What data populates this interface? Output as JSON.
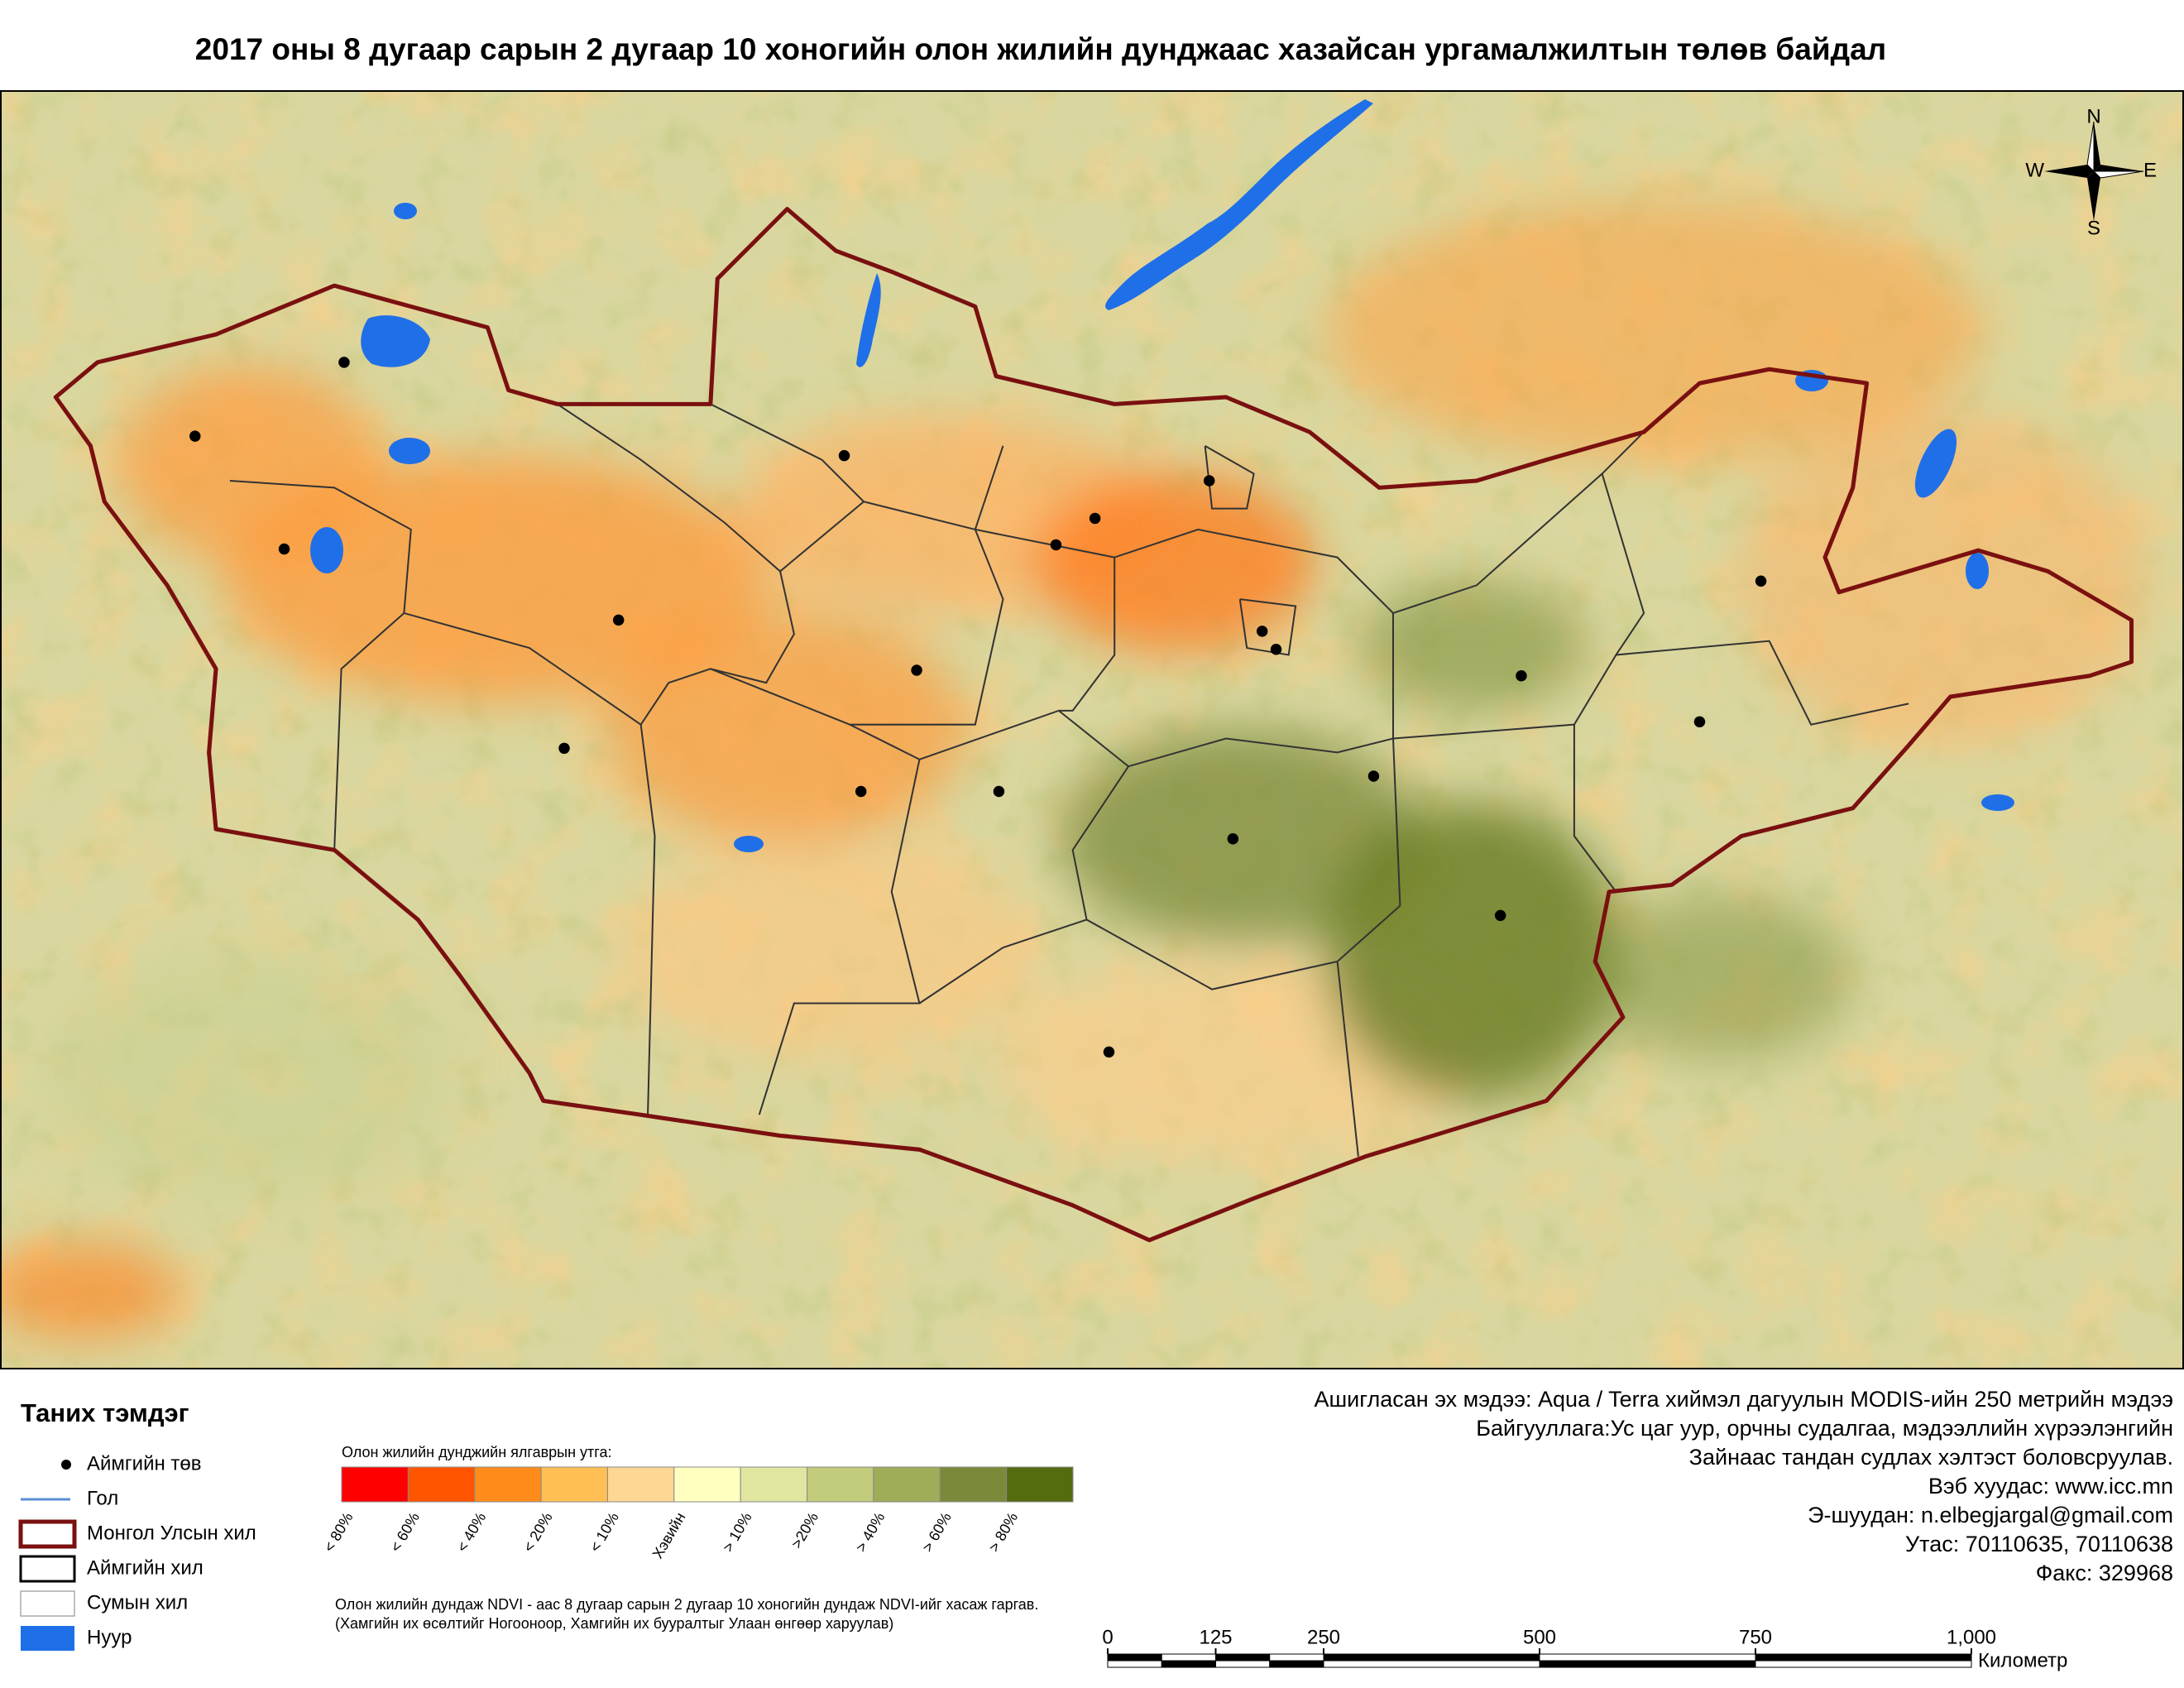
{
  "title": "2017 оны 8 дугаар сарын 2 дугаар 10 хоногийн олон жилийн дунджаас хазайсан ургамалжилтын төлөв байдал",
  "compass": {
    "n": "N",
    "e": "E",
    "s": "S",
    "w": "W"
  },
  "legend": {
    "title": "Таних тэмдэг",
    "items": [
      "Аймгийн төв",
      "Гол",
      "Монгол Улсын хил",
      "Аймгийн хил",
      "Сумын хил",
      "Нуур"
    ]
  },
  "color_scale": {
    "title": "Олон жилийн дунджийн ялгаврын утга:",
    "classes": [
      {
        "label": "< 80%",
        "color": "#ff0000"
      },
      {
        "label": "< 60%",
        "color": "#ff5500"
      },
      {
        "label": "< 40%",
        "color": "#ff8c1a"
      },
      {
        "label": "< 20%",
        "color": "#ffbf55"
      },
      {
        "label": "< 10%",
        "color": "#ffd795"
      },
      {
        "label": "Хэвийн",
        "color": "#ffffc0"
      },
      {
        "label": "> 10%",
        "color": "#e0e6a0"
      },
      {
        "label": ">20%",
        "color": "#c2cc7a"
      },
      {
        "label": "> 40%",
        "color": "#a0ad58"
      },
      {
        "label": "> 60%",
        "color": "#7a8a3a"
      },
      {
        "label": "> 80%",
        "color": "#556b10"
      }
    ]
  },
  "notes": [
    "Олон жилийн дундаж NDVI - аас 8 дугаар сарын 2 дугаар 10 хоногийн дундаж NDVI-ийг хасаж гаргав.",
    "(Хамгийн их өсөлтийг Ногооноор,  Хамгийн их бууралтыг Улаан өнгөөр харуулав)"
  ],
  "credits": [
    "Ашигласан эх мэдээ: Aqua / Terra хиймэл дагуулын MODIS-ийн 250 метрийн мэдээ",
    "Байгууллага:Ус цаг уур, орчны судалгаа, мэдээллийн хүрээлэнгийн",
    "Зайнаас тандан судлах хэлтэст боловсруулав.",
    "Вэб хуудас: www.icc.mn",
    "Э-шуудан: n.elbegjargal@gmail.com",
    "Утас: 70110635, 70110638",
    "Факс: 329968"
  ],
  "scale_bar": {
    "ticks": [
      0,
      125,
      250,
      500,
      750,
      {
        "value": 1000,
        "label": "1,000"
      }
    ],
    "unit": "Километр"
  }
}
